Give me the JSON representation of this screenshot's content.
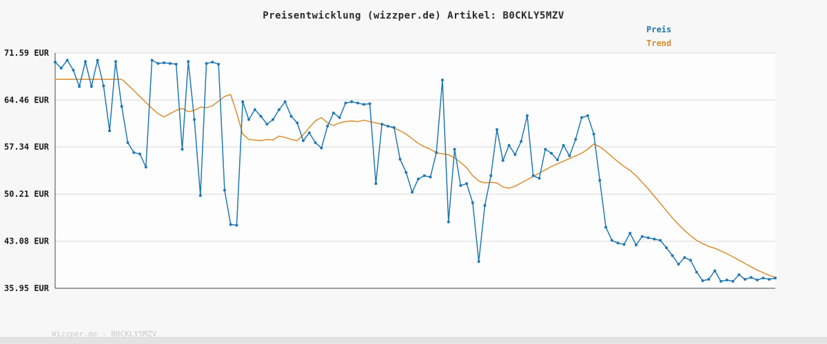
{
  "title": "Preisentwicklung (wizzper.de) Artikel: B0CKLY5MZV",
  "watermark": "Wizzper.de - B0CKLY5MZV",
  "legend": [
    {
      "label": "Preis",
      "color": "#1f77b4"
    },
    {
      "label": "Trend",
      "color": "#d98c2b"
    }
  ],
  "chart_data": {
    "type": "line",
    "title": "Preisentwicklung (wizzper.de) Artikel: B0CKLY5MZV",
    "xlabel": "",
    "ylabel": "EUR",
    "ylim": [
      35.95,
      71.59
    ],
    "grid": true,
    "legend_position": "top-right",
    "yticks": [
      {
        "value": 71.59,
        "label": "71.59 EUR"
      },
      {
        "value": 64.46,
        "label": "64.46 EUR"
      },
      {
        "value": 57.34,
        "label": "57.34 EUR"
      },
      {
        "value": 50.21,
        "label": "50.21 EUR"
      },
      {
        "value": 43.08,
        "label": "43.08 EUR"
      },
      {
        "value": 35.95,
        "label": "35.95 EUR"
      }
    ],
    "series": [
      {
        "name": "Preis",
        "color": "#1f77b4",
        "markers": true,
        "values": [
          70.2,
          69.3,
          70.5,
          69.0,
          66.5,
          70.3,
          66.5,
          70.5,
          66.6,
          59.8,
          70.3,
          63.5,
          58.0,
          56.5,
          56.3,
          54.3,
          70.5,
          70.0,
          70.1,
          70.0,
          69.9,
          57.0,
          70.3,
          61.5,
          50.0,
          70.0,
          70.2,
          69.9,
          50.8,
          45.6,
          45.5,
          64.2,
          61.5,
          63.0,
          62.0,
          60.8,
          61.5,
          63.0,
          64.2,
          62.0,
          61.0,
          58.3,
          59.5,
          58.0,
          57.2,
          60.5,
          62.5,
          61.8,
          64.0,
          64.2,
          64.0,
          63.8,
          63.9,
          51.8,
          60.8,
          60.5,
          60.3,
          55.5,
          53.5,
          50.5,
          52.5,
          53.0,
          52.8,
          56.5,
          67.5,
          46.0,
          57.0,
          51.5,
          51.8,
          48.9,
          40.0,
          48.5,
          53.0,
          60.0,
          55.3,
          57.6,
          56.2,
          58.2,
          62.1,
          53.0,
          52.6,
          57.0,
          56.4,
          55.4,
          57.6,
          56.0,
          58.5,
          61.8,
          62.1,
          59.3,
          52.3,
          45.2,
          43.2,
          42.8,
          42.6,
          44.3,
          42.5,
          43.8,
          43.6,
          43.4,
          43.2,
          42.1,
          40.9,
          39.6,
          40.6,
          40.2,
          38.4,
          37.1,
          37.3,
          38.6,
          37.0,
          37.2,
          37.0,
          38.0,
          37.3,
          37.6,
          37.2,
          37.5,
          37.3,
          37.5
        ]
      },
      {
        "name": "Trend",
        "color": "#d98c2b",
        "markers": false,
        "values": [
          67.6,
          67.6,
          67.6,
          67.6,
          67.6,
          67.6,
          67.6,
          67.6,
          67.6,
          67.6,
          67.6,
          67.6,
          66.8,
          65.9,
          65.0,
          64.1,
          63.2,
          62.4,
          61.9,
          62.4,
          62.9,
          63.2,
          62.7,
          62.9,
          63.4,
          63.3,
          63.6,
          64.3,
          65.0,
          65.3,
          62.5,
          59.3,
          58.5,
          58.4,
          58.3,
          58.5,
          58.4,
          59.0,
          58.8,
          58.5,
          58.3,
          59.2,
          60.3,
          61.3,
          61.8,
          61.0,
          60.6,
          61.0,
          61.2,
          61.3,
          61.2,
          61.4,
          61.2,
          61.0,
          60.8,
          60.5,
          60.2,
          59.8,
          59.3,
          58.6,
          57.9,
          57.4,
          57.0,
          56.5,
          56.3,
          56.2,
          55.7,
          55.0,
          54.2,
          53.0,
          52.2,
          51.9,
          52.0,
          51.9,
          51.3,
          51.1,
          51.4,
          51.9,
          52.4,
          52.9,
          53.4,
          53.9,
          54.4,
          54.8,
          55.2,
          55.6,
          56.0,
          56.4,
          57.0,
          57.8,
          57.4,
          56.7,
          55.9,
          55.1,
          54.4,
          53.8,
          53.0,
          52.0,
          51.0,
          49.9,
          48.8,
          47.7,
          46.6,
          45.6,
          44.7,
          43.9,
          43.2,
          42.7,
          42.3,
          42.0,
          41.6,
          41.2,
          40.7,
          40.2,
          39.7,
          39.2,
          38.7,
          38.3,
          37.9,
          37.6
        ]
      }
    ]
  }
}
